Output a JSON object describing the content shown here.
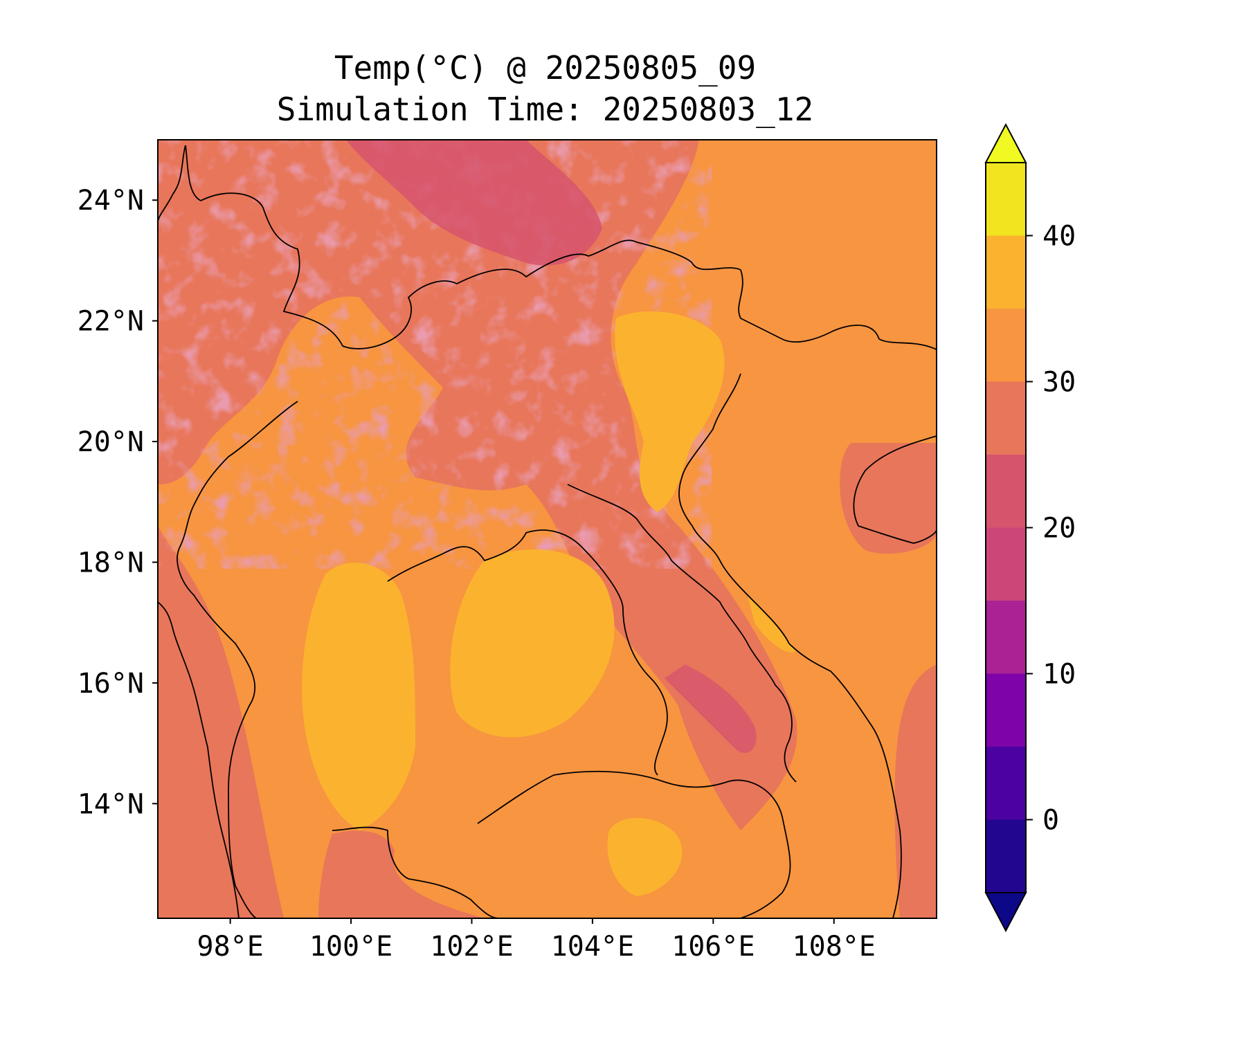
{
  "title": "Temp(°C) @ 20250805_09",
  "subtitle": "Simulation Time: 20250803_12",
  "map": {
    "type": "filled-contour",
    "variable": "Temp(°C)",
    "lon_range": [
      96.8,
      109.7
    ],
    "lat_range": [
      12.1,
      25.0
    ],
    "lon_ticks": [
      98,
      100,
      102,
      104,
      106,
      108
    ],
    "lon_tick_labels": [
      "98°E",
      "100°E",
      "102°E",
      "104°E",
      "106°E",
      "108°E"
    ],
    "lat_ticks": [
      14,
      16,
      18,
      20,
      22,
      24
    ],
    "lat_tick_labels": [
      "14°N",
      "16°N",
      "18°N",
      "20°N",
      "22°N",
      "24°N"
    ],
    "coastlines_and_borders": true,
    "grid": false,
    "regions": {
      "background_ocean": "30-35",
      "central_thailand": "35-40",
      "khorat_plateau": "35-40",
      "red_river_delta": "35-40",
      "cambodia": "30-35",
      "northern_highlands": "20-30"
    }
  },
  "colorbar": {
    "orientation": "vertical",
    "extend": "both",
    "levels": [
      -5,
      0,
      5,
      10,
      15,
      20,
      25,
      30,
      35,
      40,
      45
    ],
    "ticks": [
      0,
      10,
      20,
      30,
      40
    ],
    "tick_labels": [
      "0",
      "10",
      "20",
      "30",
      "40"
    ],
    "under_color": "#0d0887",
    "over_color": "#f0f921",
    "colors": [
      "#220690",
      "#4c02a1",
      "#7e03a8",
      "#a92395",
      "#cc4778",
      "#d6556d",
      "#e8765a",
      "#f79540",
      "#fbb32f",
      "#f0e51f"
    ]
  }
}
